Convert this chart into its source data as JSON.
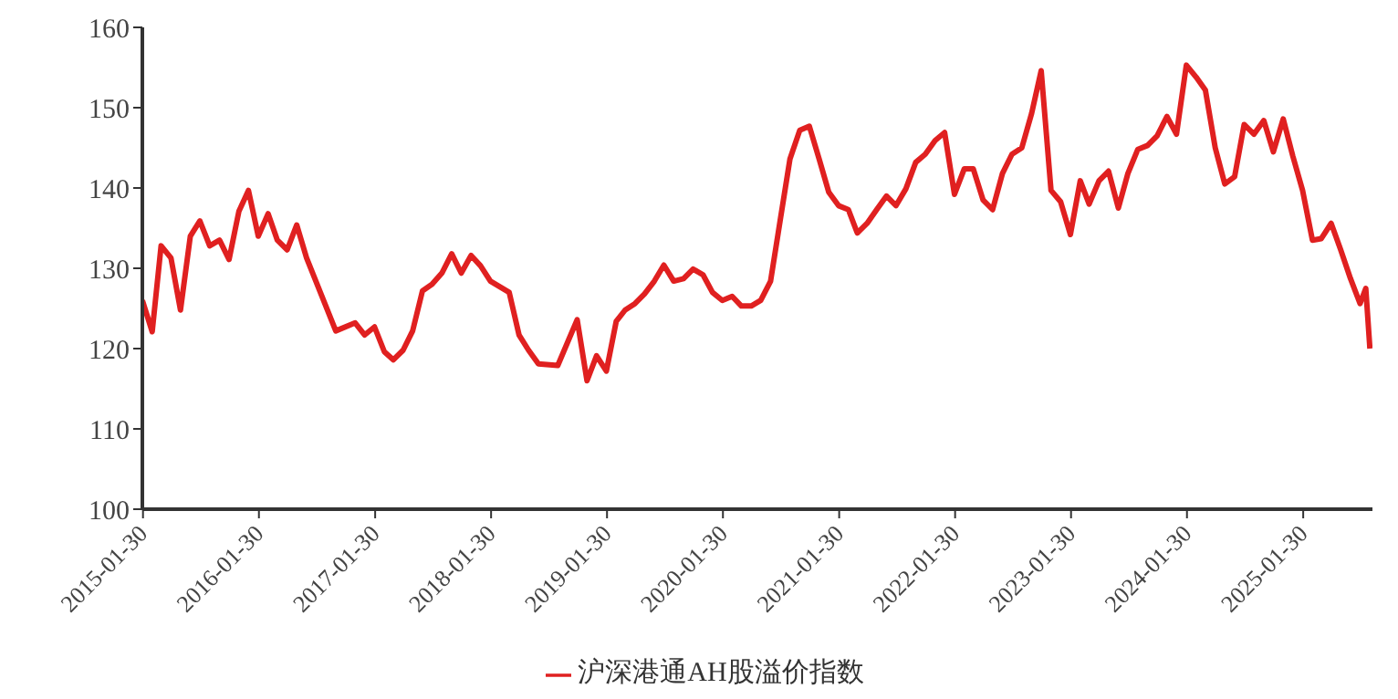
{
  "chart_data": {
    "type": "line",
    "x": [
      "2015-01-28",
      "2015-02-28",
      "2015-03-28",
      "2015-04-28",
      "2015-05-28",
      "2015-06-28",
      "2015-07-28",
      "2015-08-28",
      "2015-09-28",
      "2015-10-28",
      "2015-11-28",
      "2015-12-28",
      "2016-01-28",
      "2016-02-28",
      "2016-03-28",
      "2016-04-28",
      "2016-05-28",
      "2016-06-28",
      "2016-09-28",
      "2016-11-28",
      "2016-12-28",
      "2017-01-28",
      "2017-02-28",
      "2017-03-28",
      "2017-04-28",
      "2017-05-28",
      "2017-06-28",
      "2017-07-28",
      "2017-08-28",
      "2017-09-28",
      "2017-10-28",
      "2017-11-28",
      "2017-12-28",
      "2018-01-28",
      "2018-03-28",
      "2018-04-28",
      "2018-05-28",
      "2018-06-28",
      "2018-08-28",
      "2018-09-28",
      "2018-10-28",
      "2018-11-28",
      "2018-12-28",
      "2019-01-28",
      "2019-02-28",
      "2019-03-28",
      "2019-04-28",
      "2019-05-28",
      "2019-06-28",
      "2019-07-28",
      "2019-08-28",
      "2019-09-28",
      "2019-10-28",
      "2019-11-28",
      "2019-12-28",
      "2020-01-28",
      "2020-02-28",
      "2020-03-28",
      "2020-04-28",
      "2020-05-28",
      "2020-06-28",
      "2020-07-28",
      "2020-08-28",
      "2020-09-28",
      "2020-10-28",
      "2020-11-28",
      "2020-12-28",
      "2021-01-28",
      "2021-02-28",
      "2021-03-28",
      "2021-04-28",
      "2021-05-28",
      "2021-06-28",
      "2021-07-28",
      "2021-08-28",
      "2021-09-28",
      "2021-10-28",
      "2021-11-28",
      "2021-12-28",
      "2022-01-28",
      "2022-02-28",
      "2022-03-28",
      "2022-04-28",
      "2022-05-28",
      "2022-06-28",
      "2022-07-28",
      "2022-08-28",
      "2022-09-28",
      "2022-10-28",
      "2022-11-28",
      "2022-12-28",
      "2023-01-28",
      "2023-02-28",
      "2023-03-28",
      "2023-04-28",
      "2023-05-28",
      "2023-06-28",
      "2023-07-28",
      "2023-08-28",
      "2023-09-28",
      "2023-10-28",
      "2023-11-28",
      "2023-12-28",
      "2024-01-28",
      "2024-02-28",
      "2024-03-28",
      "2024-04-28",
      "2024-05-28",
      "2024-06-28",
      "2024-07-28",
      "2024-08-28",
      "2024-09-28",
      "2024-10-28",
      "2024-11-28",
      "2024-12-28",
      "2025-01-28",
      "2025-02-28",
      "2025-03-28",
      "2025-04-28",
      "2025-05-28",
      "2025-06-28",
      "2025-07-28",
      "2025-08-15",
      "2025-08-28"
    ],
    "series": [
      {
        "name": "沪深港通AH股溢价指数",
        "color": "#e02020",
        "values": [
          126,
          122.1,
          132.8,
          131.3,
          124.8,
          134,
          135.9,
          132.8,
          133.5,
          131.1,
          137.1,
          139.7,
          134,
          136.8,
          133.5,
          132.3,
          135.4,
          131.3,
          122.2,
          123.2,
          121.7,
          122.7,
          119.6,
          118.6,
          119.8,
          122.2,
          127.2,
          128,
          129.4,
          131.8,
          129.4,
          131.6,
          130.3,
          128.4,
          127,
          121.7,
          119.8,
          118.1,
          117.9,
          120.8,
          123.6,
          116,
          119.1,
          117.2,
          123.4,
          124.8,
          125.6,
          126.8,
          128.4,
          130.4,
          128.4,
          128.7,
          129.9,
          129.2,
          127,
          126,
          126.5,
          125.3,
          125.3,
          126,
          128.4,
          135.9,
          143.6,
          147.2,
          147.7,
          143.6,
          139.5,
          137.8,
          137.3,
          134.4,
          135.6,
          137.3,
          139,
          137.8,
          139.9,
          143.2,
          144.2,
          145.9,
          146.9,
          139.2,
          142.4,
          142.4,
          138.5,
          137.3,
          141.8,
          144.2,
          145,
          149.3,
          154.6,
          139.7,
          138.3,
          134.2,
          140.9,
          138,
          140.9,
          142.1,
          137.5,
          141.8,
          144.8,
          145.3,
          146.5,
          148.9,
          146.7,
          155.3,
          153.8,
          152.2,
          145,
          140.5,
          141.4,
          147.9,
          146.7,
          148.4,
          144.5,
          148.6,
          144,
          139.7,
          133.5,
          133.7,
          135.6,
          132.3,
          128.7,
          125.6,
          127.5,
          120
        ]
      }
    ],
    "xlim": [
      "2015-01-28",
      "2025-09-05"
    ],
    "xticks": [
      "2015-01-30",
      "2016-01-30",
      "2017-01-30",
      "2018-01-30",
      "2019-01-30",
      "2020-01-30",
      "2021-01-30",
      "2022-01-30",
      "2023-01-30",
      "2024-01-30",
      "2025-01-30"
    ],
    "ylim": [
      100,
      160
    ],
    "yticks": [
      100,
      110,
      120,
      130,
      140,
      150,
      160
    ],
    "grid": false,
    "legend": "bottom",
    "marker": "none",
    "line_style": "solid"
  }
}
